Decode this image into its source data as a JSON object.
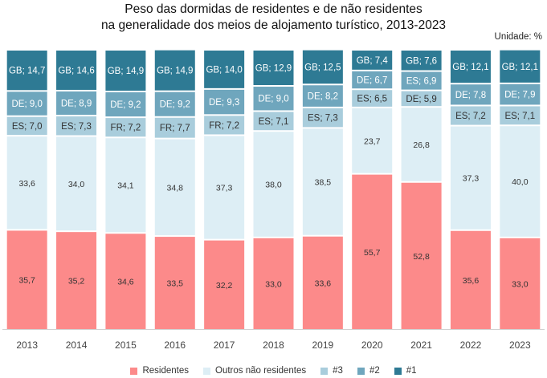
{
  "chart_data": {
    "type": "bar",
    "stacked": true,
    "title_line1": "Peso das dormidas de residentes e de não residentes",
    "title_line2": "na generalidade dos meios de alojamento turístico, 2013-2023",
    "unit_label": "Unidade: %",
    "categories": [
      "2013",
      "2014",
      "2015",
      "2016",
      "2017",
      "2018",
      "2019",
      "2020",
      "2021",
      "2022",
      "2023"
    ],
    "ylim": [
      0,
      100
    ],
    "series": [
      {
        "name": "Residentes",
        "color": "#fc8a8a",
        "values": [
          35.7,
          35.2,
          34.6,
          33.5,
          32.2,
          33.0,
          33.6,
          55.7,
          52.8,
          35.6,
          33.0
        ],
        "labels": [
          "35,7",
          "35,2",
          "34,6",
          "33,5",
          "32,2",
          "33,0",
          "33,6",
          "55,7",
          "52,8",
          "35,6",
          "33,0"
        ]
      },
      {
        "name": "Outros não residentes",
        "color": "#ddeef5",
        "values": [
          33.6,
          34.0,
          34.1,
          34.8,
          37.3,
          38.0,
          38.5,
          23.7,
          26.8,
          37.3,
          40.0
        ],
        "labels": [
          "33,6",
          "34,0",
          "34,1",
          "34,8",
          "37,3",
          "38,0",
          "38,5",
          "23,7",
          "26,8",
          "37,3",
          "40,0"
        ]
      },
      {
        "name": "#3",
        "color": "#a9cddc",
        "values": [
          7.0,
          7.3,
          7.2,
          7.7,
          7.2,
          7.1,
          7.3,
          6.5,
          5.9,
          7.2,
          7.1
        ],
        "labels": [
          "ES; 7,0",
          "ES; 7,3",
          "FR; 7,2",
          "FR; 7,7",
          "FR; 7,2",
          "ES; 7,1",
          "ES; 7,3",
          "ES; 6,5",
          "DE; 5,9",
          "ES; 7,2",
          "ES; 7,1"
        ]
      },
      {
        "name": "#2",
        "color": "#6fa6bd",
        "values": [
          9.0,
          8.9,
          9.2,
          9.2,
          9.3,
          9.0,
          8.2,
          6.7,
          6.9,
          7.8,
          7.9
        ],
        "labels": [
          "DE; 9,0",
          "DE; 8,9",
          "DE; 9,2",
          "DE; 9,2",
          "DE; 9,3",
          "DE; 9,0",
          "DE; 8,2",
          "DE; 6,7",
          "ES; 6,9",
          "DE; 7,8",
          "DE; 7,9"
        ]
      },
      {
        "name": "#1",
        "color": "#2e7a94",
        "values": [
          14.7,
          14.6,
          14.9,
          14.9,
          14.0,
          12.9,
          12.5,
          7.4,
          7.6,
          12.1,
          12.1
        ],
        "labels": [
          "GB; 14,7",
          "GB; 14,6",
          "GB; 14,9",
          "GB; 14,9",
          "GB; 14,0",
          "GB; 12,9",
          "GB; 12,5",
          "GB; 7,4",
          "GB; 7,6",
          "GB; 12,1",
          "GB; 12,1"
        ]
      }
    ]
  }
}
